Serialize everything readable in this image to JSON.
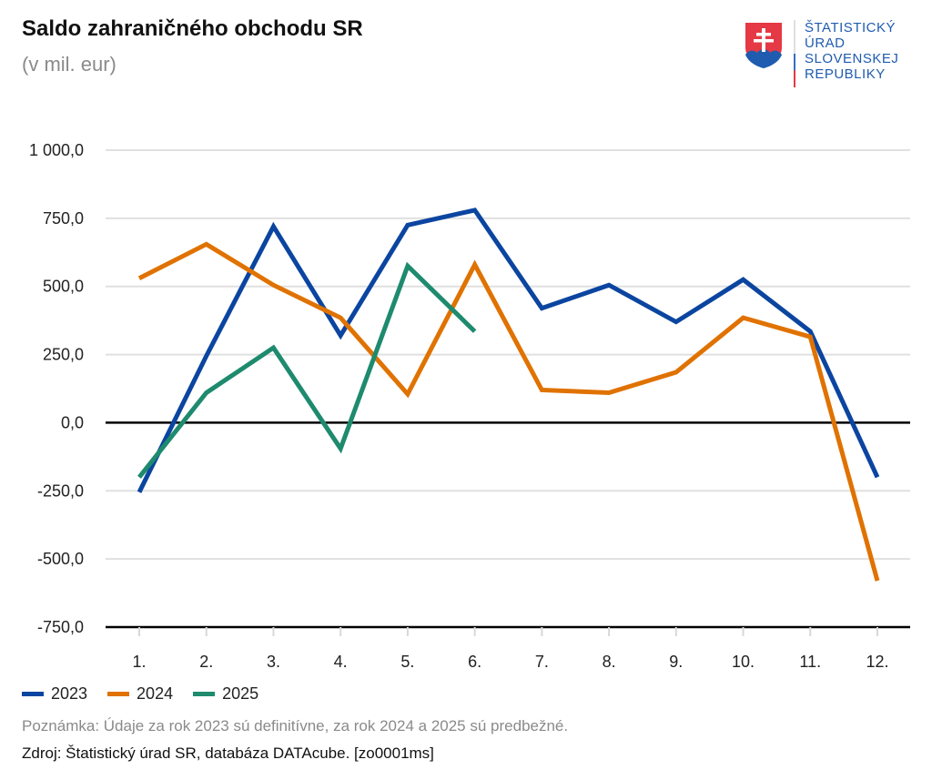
{
  "header": {
    "title": "Saldo zahraničného obchodu SR",
    "subtitle": "(v mil. eur)"
  },
  "logo": {
    "lines": [
      "ŠTATISTICKÝ",
      "ÚRAD",
      "SLOVENSKEJ",
      "REPUBLIKY"
    ],
    "icon": "slovak-coat-of-arms-icon"
  },
  "footer": {
    "note": "Poznámka: Údaje za rok 2023 sú definitívne, za rok 2024 a 2025 sú predbežné.",
    "source": "Zdroj: Štatistický úrad SR, databáza DATAcube. [zo0001ms]"
  },
  "chart_data": {
    "type": "line",
    "title": "Saldo zahraničného obchodu SR",
    "subtitle": "(v mil. eur)",
    "xlabel": "",
    "ylabel": "",
    "categories": [
      "1.",
      "2.",
      "3.",
      "4.",
      "5.",
      "6.",
      "7.",
      "8.",
      "9.",
      "10.",
      "11.",
      "12."
    ],
    "ylim": [
      -750,
      1000
    ],
    "yticks": [
      1000,
      750,
      500,
      250,
      0,
      -250,
      -500,
      -750
    ],
    "ytick_labels": [
      "1 000,0",
      "750,0",
      "500,0",
      "250,0",
      "0,0",
      "-250,0",
      "-500,0",
      "-750,0"
    ],
    "grid": true,
    "legend_position": "bottom-left",
    "series": [
      {
        "name": "2023",
        "color": "#0b45a0",
        "values": [
          -255,
          245,
          720,
          320,
          725,
          780,
          420,
          505,
          370,
          525,
          335,
          -200
        ]
      },
      {
        "name": "2024",
        "color": "#e07200",
        "values": [
          530,
          655,
          505,
          385,
          105,
          580,
          120,
          110,
          185,
          385,
          315,
          -580
        ]
      },
      {
        "name": "2025",
        "color": "#1e8a6e",
        "values": [
          -200,
          110,
          275,
          -95,
          575,
          335
        ]
      }
    ]
  }
}
